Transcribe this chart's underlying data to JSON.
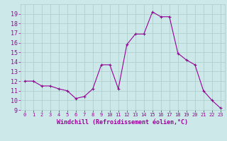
{
  "x": [
    0,
    1,
    2,
    3,
    4,
    5,
    6,
    7,
    8,
    9,
    10,
    11,
    12,
    13,
    14,
    15,
    16,
    17,
    18,
    19,
    20,
    21,
    22,
    23
  ],
  "y": [
    12.0,
    12.0,
    11.5,
    11.5,
    11.2,
    11.0,
    10.2,
    10.4,
    11.2,
    13.7,
    13.7,
    11.2,
    15.8,
    16.9,
    16.9,
    19.2,
    18.7,
    18.7,
    14.9,
    14.2,
    13.7,
    11.0,
    10.0,
    9.2
  ],
  "line_color": "#990099",
  "marker": "+",
  "marker_color": "#990099",
  "bg_color": "#cce8e8",
  "grid_color": "#aacccc",
  "xlabel": "Windchill (Refroidissement éolien,°C)",
  "xlabel_color": "#990099",
  "tick_color": "#990099",
  "ylim": [
    9,
    20
  ],
  "xlim": [
    -0.5,
    23.5
  ],
  "yticks": [
    9,
    10,
    11,
    12,
    13,
    14,
    15,
    16,
    17,
    18,
    19
  ],
  "xticks": [
    0,
    1,
    2,
    3,
    4,
    5,
    6,
    7,
    8,
    9,
    10,
    11,
    12,
    13,
    14,
    15,
    16,
    17,
    18,
    19,
    20,
    21,
    22,
    23
  ],
  "figsize": [
    3.2,
    2.0
  ],
  "dpi": 100
}
